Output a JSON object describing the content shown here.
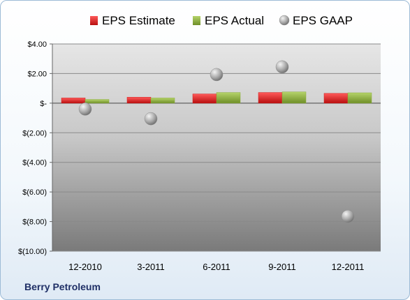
{
  "company_label": "Berry Petroleum",
  "colors": {
    "estimate": "#d01818",
    "actual": "#8aad3a",
    "gaap": "#b0b0b0"
  },
  "chart_data": {
    "type": "bar",
    "categories": [
      "12-2010",
      "3-2011",
      "6-2011",
      "9-2011",
      "12-2011"
    ],
    "series": [
      {
        "name": "EPS Estimate",
        "kind": "bar",
        "values": [
          0.35,
          0.4,
          0.62,
          0.72,
          0.66
        ]
      },
      {
        "name": "EPS Actual",
        "kind": "bar",
        "values": [
          0.25,
          0.35,
          0.72,
          0.76,
          0.7
        ]
      },
      {
        "name": "EPS GAAP",
        "kind": "point",
        "values": [
          -0.4,
          -1.05,
          1.93,
          2.45,
          -7.65
        ]
      }
    ],
    "y_ticks": [
      "$4.00",
      "$2.00",
      "$-",
      "$(2.00)",
      "$(4.00)",
      "$(6.00)",
      "$(8.00)",
      "$(10.00)"
    ],
    "ylim": [
      -10,
      4
    ],
    "y_step": 2,
    "legend_position": "top",
    "grid": true
  }
}
